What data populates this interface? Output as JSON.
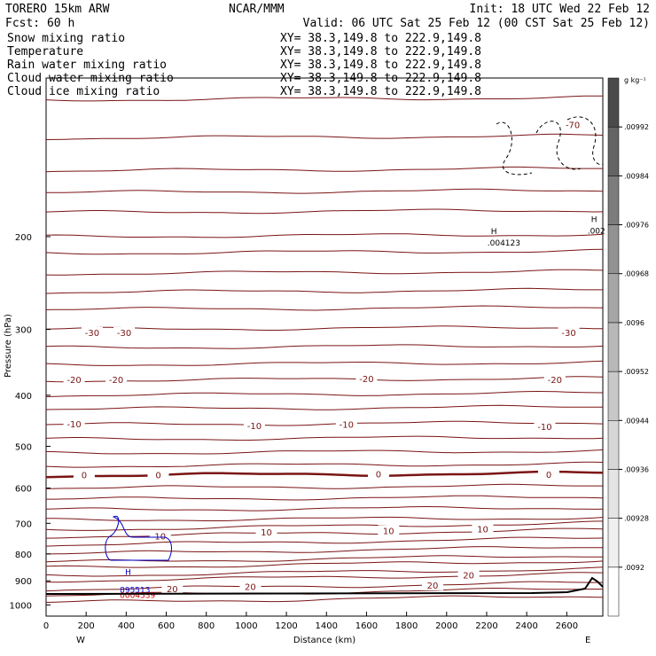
{
  "header": {
    "model": "TORERO  15km ARW",
    "center": "NCAR/MMM",
    "init": "Init: 18 UTC Wed 22 Feb 12",
    "fcst": "Fcst:   60 h",
    "valid": "Valid: 06 UTC Sat 25 Feb 12 (00 CST Sat 25 Feb 12)"
  },
  "fields": [
    {
      "name": "Snow mixing ratio",
      "color": "#000000",
      "xy": "XY=  38.3,149.8 to 222.9,149.8",
      "xy_color": "#cc0000"
    },
    {
      "name": "Temperature",
      "color": "#cc0000",
      "xy": "XY=  38.3,149.8 to 222.9,149.8",
      "xy_color": "#cc0000"
    },
    {
      "name": "Rain water mixing ratio",
      "color": "#cc0000",
      "xy": "XY=  38.3,149.8 to 222.9,149.8",
      "xy_color": "#cc0000"
    },
    {
      "name": "Cloud water mixing ratio",
      "color": "#0000cc",
      "xy": "XY=  38.3,149.8 to 222.9,149.8",
      "xy_color": "#0000cc"
    },
    {
      "name": "Cloud ice mixing ratio",
      "color": "#000000",
      "xy": "XY=  38.3,149.8 to 222.9,149.8",
      "xy_color": "#000000"
    }
  ],
  "colors": {
    "temperature": "#7a1414",
    "cloud_water": "#0000cc",
    "rain": "#cc0000",
    "ice": "#000000",
    "terrain": "#000000"
  },
  "chart_data": {
    "type": "contour",
    "xlabel": "Distance (km)",
    "ylabel": "Pressure (hPa)",
    "xlim": [
      0,
      2780
    ],
    "ylim": [
      1050,
      100
    ],
    "y_scale": "log",
    "grid": false,
    "x_ticks": [
      0,
      200,
      400,
      600,
      800,
      1000,
      1200,
      1400,
      1600,
      1800,
      2000,
      2200,
      2400,
      2600
    ],
    "y_ticks": [
      200,
      300,
      400,
      500,
      600,
      700,
      800,
      900,
      1000
    ],
    "x_end_labels": {
      "left": "W",
      "right": "E"
    },
    "colorbar": {
      "units": "g kg⁻¹",
      "labels": [
        ".0092",
        ".00928",
        ".00936",
        ".00944",
        ".00952",
        ".0096",
        ".00968",
        ".00976",
        ".00984",
        ".00992"
      ],
      "colors": [
        "#ffffff",
        "#f0f0f0",
        "#e4e4e4",
        "#d6d6d6",
        "#c8c8c8",
        "#b8b8b8",
        "#a6a6a6",
        "#929292",
        "#7c7c7c",
        "#646464",
        "#4a4a4a"
      ]
    },
    "temperature_contours": [
      {
        "value": -70,
        "pressure": [
          120,
          122,
          124,
          123
        ],
        "label": "-70",
        "label_x": [
          2630
        ]
      },
      {
        "value": -30,
        "pressure": [
          305,
          305,
          303,
          305
        ],
        "label": "-30",
        "label_x": [
          230,
          390,
          2610
        ]
      },
      {
        "value": -20,
        "pressure": [
          375,
          378,
          373,
          375
        ],
        "label": "-20",
        "label_x": [
          140,
          350,
          1600,
          2540
        ]
      },
      {
        "value": -10,
        "pressure": [
          455,
          458,
          456,
          460
        ],
        "label": "-10",
        "label_x": [
          140,
          1040,
          1500,
          2490
        ]
      },
      {
        "value": 0,
        "pressure": [
          568,
          570,
          566,
          567
        ],
        "label": "0",
        "label_x": [
          190,
          560,
          1660,
          2510
        ]
      },
      {
        "value": 10,
        "pressure": [
          742,
          730,
          725,
          720
        ],
        "label": "10",
        "label_x": [
          570,
          1100,
          1710,
          2180
        ]
      },
      {
        "value": 20,
        "pressure": [
          935,
          925,
          920,
          880
        ],
        "label": "20",
        "label_x": [
          630,
          1020,
          1930,
          2110
        ]
      }
    ],
    "cloud_water_max": {
      "label": "H",
      "value": "895513",
      "x": 430,
      "pressure": 905
    },
    "rain_water_value": {
      "value": "0004539",
      "x": 430,
      "pressure": 925
    },
    "ice_max": [
      {
        "label": "H",
        "value": ".004123",
        "x": 2230,
        "pressure": 200
      },
      {
        "label": "H",
        "value": ".002",
        "x": 2730,
        "pressure": 190
      }
    ],
    "small_labels": [
      "20",
      "0"
    ]
  },
  "axes_text": {
    "ylabel": "Pressure (hPa)",
    "xlabel": "Distance (km)"
  }
}
